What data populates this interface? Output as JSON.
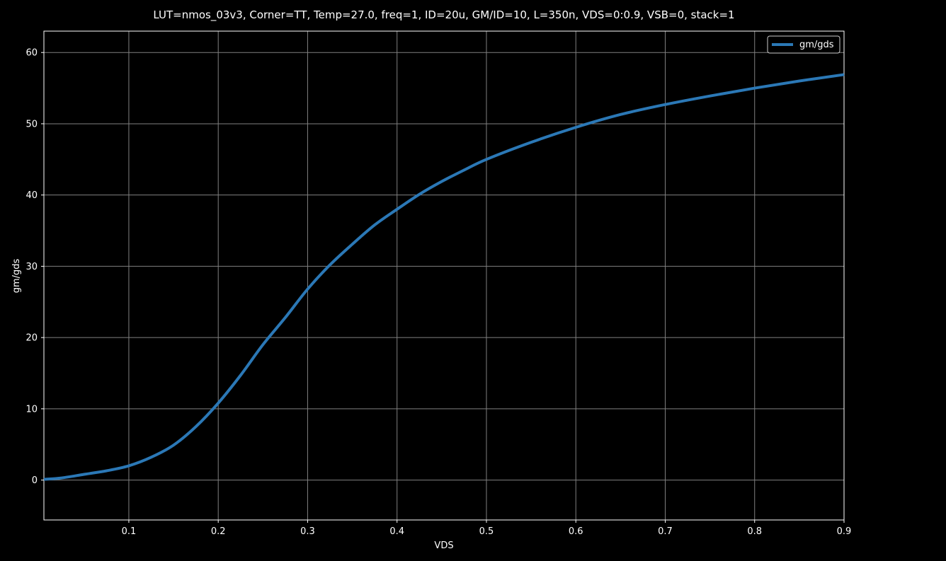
{
  "chart_data": {
    "type": "line",
    "title": "LUT=nmos_03v3, Corner=TT, Temp=27.0, freq=1, ID=20u, GM/ID=10, L=350n, VDS=0:0.9, VSB=0, stack=1",
    "xlabel": "VDS",
    "ylabel": "gm/gds",
    "xlim": [
      0.005,
      0.9
    ],
    "ylim": [
      -5.6,
      63
    ],
    "xticks": [
      0.1,
      0.2,
      0.3,
      0.4,
      0.5,
      0.6,
      0.7,
      0.8,
      0.9
    ],
    "xtick_labels": [
      "0.1",
      "0.2",
      "0.3",
      "0.4",
      "0.5",
      "0.6",
      "0.7",
      "0.8",
      "0.9"
    ],
    "yticks": [
      0,
      10,
      20,
      30,
      40,
      50,
      60
    ],
    "ytick_labels": [
      "0",
      "10",
      "20",
      "30",
      "40",
      "50",
      "60"
    ],
    "grid": true,
    "legend_position": "top-right",
    "series": [
      {
        "name": "gm/gds",
        "color": "#2b78b6",
        "x": [
          0.005,
          0.025,
          0.05,
          0.075,
          0.1,
          0.125,
          0.15,
          0.175,
          0.2,
          0.225,
          0.25,
          0.275,
          0.3,
          0.325,
          0.35,
          0.375,
          0.4,
          0.425,
          0.45,
          0.475,
          0.5,
          0.55,
          0.6,
          0.65,
          0.7,
          0.75,
          0.8,
          0.85,
          0.9
        ],
        "y": [
          0.1,
          0.3,
          0.8,
          1.3,
          2.0,
          3.2,
          4.9,
          7.5,
          10.8,
          14.7,
          19.0,
          22.8,
          26.8,
          30.2,
          33.1,
          35.8,
          38.0,
          40.1,
          41.9,
          43.5,
          45.0,
          47.4,
          49.5,
          51.3,
          52.7,
          53.9,
          55.0,
          56.0,
          56.9
        ]
      }
    ]
  }
}
